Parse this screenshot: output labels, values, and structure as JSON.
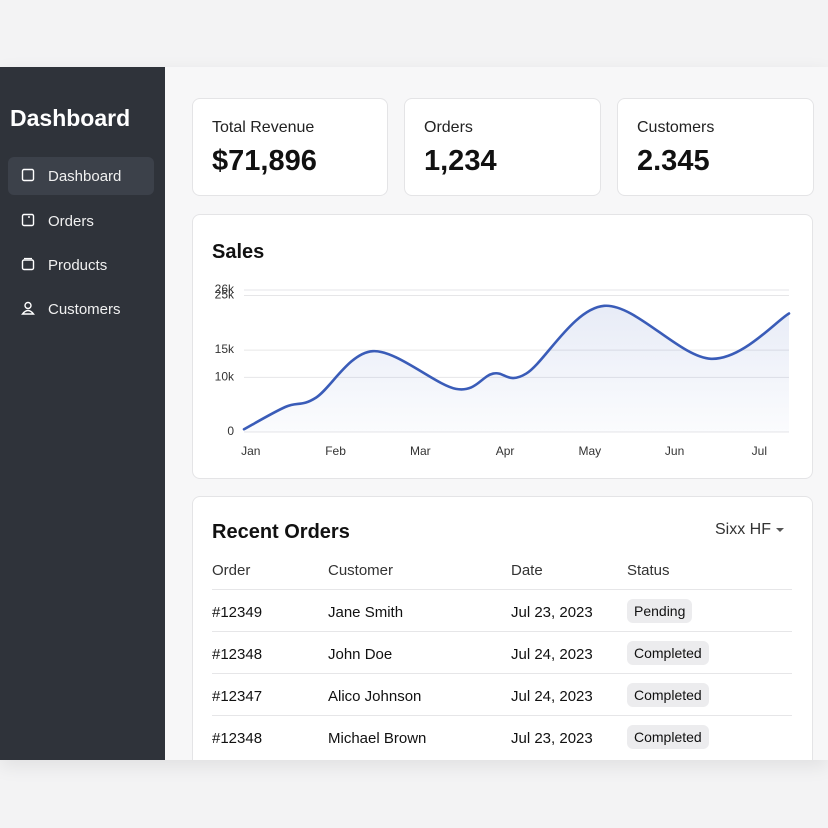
{
  "sidebar": {
    "title": "Dashboard",
    "items": [
      "Dashboard",
      "Orders",
      "Products",
      "Customers"
    ]
  },
  "stats": [
    {
      "label": "Total Revenue",
      "value": "$71,896"
    },
    {
      "label": "Orders",
      "value": "1,234"
    },
    {
      "label": "Customers",
      "value": "2.345"
    }
  ],
  "sales": {
    "type": "line",
    "title": "Sales",
    "color": "#3a5cb8",
    "x": [
      -0.08,
      0.41,
      0.77,
      1.44,
      2.42,
      2.86,
      3.25,
      4.17,
      5.43,
      6.35
    ],
    "values": [
      500,
      4600,
      6300,
      14800,
      7900,
      10700,
      10700,
      23100,
      13400,
      21700
    ],
    "xlim": [
      -0.08,
      6.35
    ],
    "ylim": [
      0,
      26000
    ],
    "xticks": [
      {
        "value": 0,
        "label": "Jan"
      },
      {
        "value": 1,
        "label": "Feb"
      },
      {
        "value": 2,
        "label": "Mar"
      },
      {
        "value": 3,
        "label": "Apr"
      },
      {
        "value": 4,
        "label": "May"
      },
      {
        "value": 5,
        "label": "Jun"
      },
      {
        "value": 6,
        "label": "Jul"
      }
    ],
    "yticks": [
      {
        "value": 25000,
        "label": "25k"
      },
      {
        "value": 26000,
        "label": "26k"
      },
      {
        "value": 15000,
        "label": "15k"
      },
      {
        "value": 10000,
        "label": "10k"
      },
      0
    ],
    "grid": true
  },
  "orders": {
    "title": "Recent Orders",
    "filter": "Sixx HF",
    "columns": [
      "Order",
      "Customer",
      "Date",
      "Status"
    ],
    "rows": [
      [
        "#12349",
        "Jane Smith",
        "Jul 23, 2023",
        "Pending"
      ],
      [
        "#12348",
        "John Doe",
        "Jul 24, 2023",
        "Completed"
      ],
      [
        "#12347",
        "Alico Johnson",
        "Jul 24, 2023",
        "Completed"
      ],
      [
        "#12348",
        "Michael Brown",
        "Jul 23, 2023",
        "Completed"
      ]
    ]
  }
}
